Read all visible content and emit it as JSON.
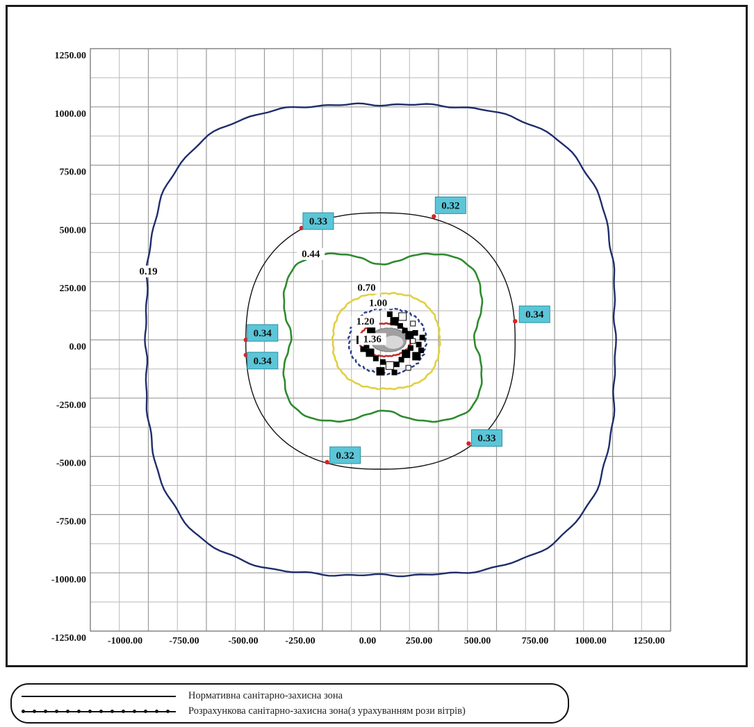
{
  "chart_data": {
    "type": "contour",
    "title": "",
    "xlabel": "",
    "ylabel": "",
    "xlim": [
      -1250,
      1250
    ],
    "ylim": [
      -1250,
      1250
    ],
    "grid": true,
    "x_ticks": [
      "-1000.00",
      "-750.00",
      "-500.00",
      "-250.00",
      "0.00",
      "250.00",
      "500.00",
      "750.00",
      "1000.00",
      "1250.00"
    ],
    "y_ticks": [
      "1250.00",
      "1000.00",
      "750.00",
      "500.00",
      "250.00",
      "0.00",
      "-250.00",
      "-500.00",
      "-750.00",
      "-1000.00",
      "-1250.00"
    ],
    "contours": [
      {
        "level": "0.19",
        "label": "0.19",
        "color": "#1f2d6b",
        "label_at": [
          -1000,
          280
        ]
      },
      {
        "level": "0.44",
        "label": "0.44",
        "color": "#2e8b2e",
        "label_at": [
          -300,
          355
        ]
      },
      {
        "level": "0.70",
        "label": "0.70",
        "color": "#e0d040",
        "label_at": [
          -60,
          210
        ]
      },
      {
        "level": "1.00",
        "label": "1.00",
        "color": "#2a3a8a",
        "label_at": [
          -10,
          145
        ]
      },
      {
        "level": "1.20",
        "label": "1.20",
        "color": "#c0302a",
        "label_at": [
          -65,
          65
        ]
      },
      {
        "level": "1.36",
        "label": "1.36",
        "color": "#888888",
        "label_at": [
          -35,
          -10
        ]
      }
    ],
    "zone_boundary": {
      "color": "#111111"
    },
    "points": [
      {
        "label": "0.32",
        "x": 230,
        "y": 530
      },
      {
        "label": "0.33",
        "x": -340,
        "y": 480
      },
      {
        "label": "0.34",
        "x": 580,
        "y": 80
      },
      {
        "label": "0.34",
        "x": -580,
        "y": 0
      },
      {
        "label": "0.34",
        "x": -580,
        "y": -65
      },
      {
        "label": "0.33",
        "x": 380,
        "y": -445
      },
      {
        "label": "0.32",
        "x": -230,
        "y": -525
      }
    ],
    "point_color": "#e02020",
    "label_box_color": "#5bc6d8"
  },
  "legend": {
    "normative_label": "Нормативна санітарно-захисна зона",
    "calculated_label": "Розрахункова санітарно-захисна зона(з урахуванням рози вітрів)"
  }
}
